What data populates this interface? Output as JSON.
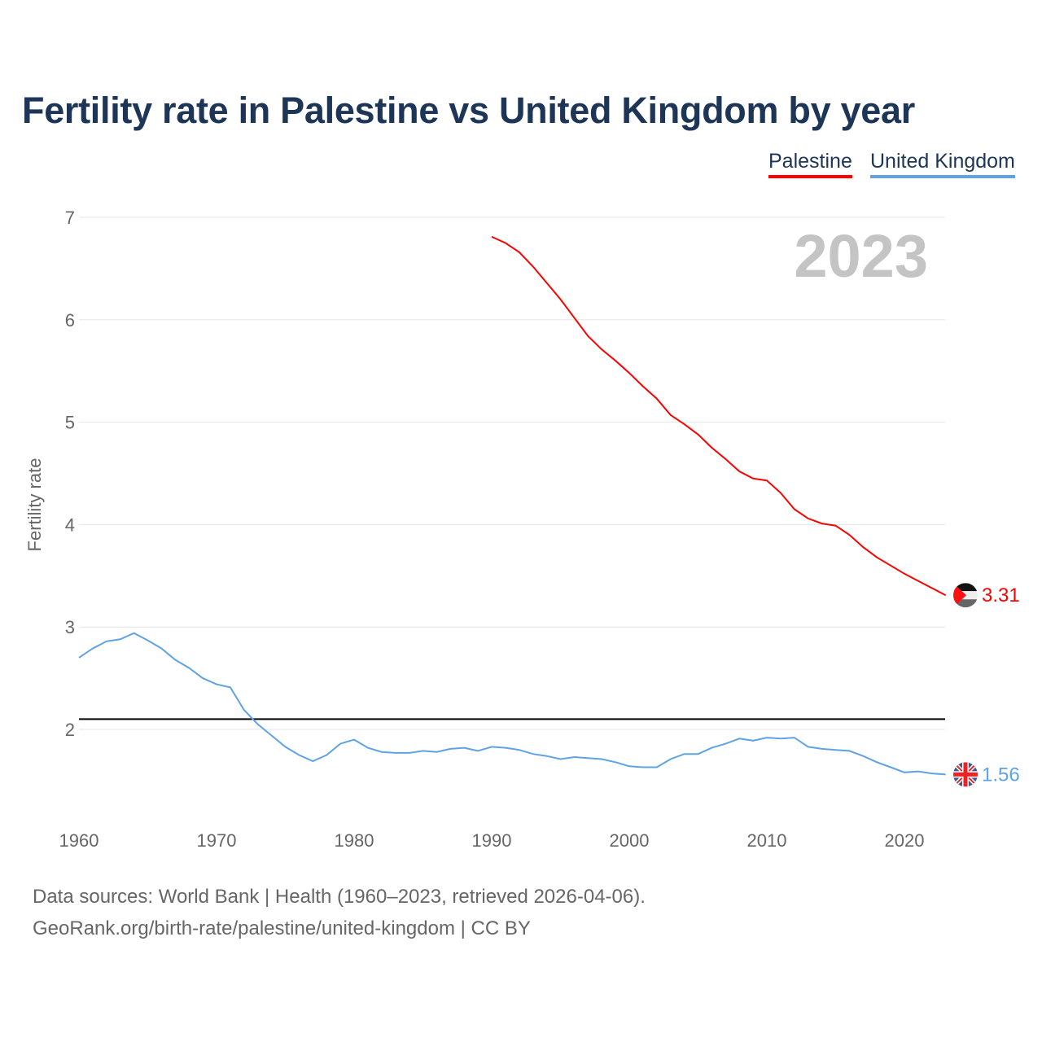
{
  "title": "Fertility rate in Palestine vs United Kingdom by year",
  "source_line1": "Data sources: World Bank | Health (1960–2023, retrieved 2026-04-06).",
  "source_line2": "GeoRank.org/birth-rate/palestine/united-kingdom | CC BY",
  "chart_data": {
    "type": "line",
    "title": "Fertility rate in Palestine vs United Kingdom by year",
    "xlabel": "",
    "ylabel": "Fertility rate",
    "xlim": [
      1960,
      2023
    ],
    "ylim": [
      1.0,
      7.0
    ],
    "x_ticks": [
      "1960",
      "1970",
      "1980",
      "1990",
      "2000",
      "2010",
      "2020"
    ],
    "y_ticks": [
      "2",
      "3",
      "4",
      "5",
      "6",
      "7"
    ],
    "year_label": "2023",
    "reference_line": 2.1,
    "legend_position": "top-right",
    "grid": true,
    "series": [
      {
        "name": "Palestine",
        "color": "#ff0000",
        "start": 1990,
        "end_label": "3.31",
        "flag": "palestine-flag",
        "values": [
          6.81,
          6.75,
          6.66,
          6.52,
          6.36,
          6.2,
          6.02,
          5.84,
          5.71,
          5.6,
          5.48,
          5.35,
          5.23,
          5.07,
          4.98,
          4.88,
          4.75,
          4.64,
          4.52,
          4.45,
          4.43,
          4.31,
          4.15,
          4.06,
          4.01,
          3.99,
          3.9,
          3.78,
          3.68,
          3.6,
          3.52,
          3.45,
          3.38,
          3.31
        ]
      },
      {
        "name": "United Kingdom",
        "color": "#5ea3e6",
        "start": 1960,
        "end_label": "1.56",
        "flag": "uk-flag",
        "values": [
          2.7,
          2.79,
          2.86,
          2.88,
          2.94,
          2.87,
          2.79,
          2.68,
          2.6,
          2.5,
          2.44,
          2.41,
          2.19,
          2.05,
          1.94,
          1.83,
          1.75,
          1.69,
          1.75,
          1.86,
          1.9,
          1.82,
          1.78,
          1.77,
          1.77,
          1.79,
          1.78,
          1.81,
          1.82,
          1.79,
          1.83,
          1.82,
          1.8,
          1.76,
          1.74,
          1.71,
          1.73,
          1.72,
          1.71,
          1.68,
          1.64,
          1.63,
          1.63,
          1.71,
          1.76,
          1.76,
          1.82,
          1.86,
          1.91,
          1.89,
          1.92,
          1.91,
          1.92,
          1.83,
          1.81,
          1.8,
          1.79,
          1.74,
          1.68,
          1.63,
          1.58,
          1.59,
          1.57,
          1.56
        ]
      }
    ]
  }
}
